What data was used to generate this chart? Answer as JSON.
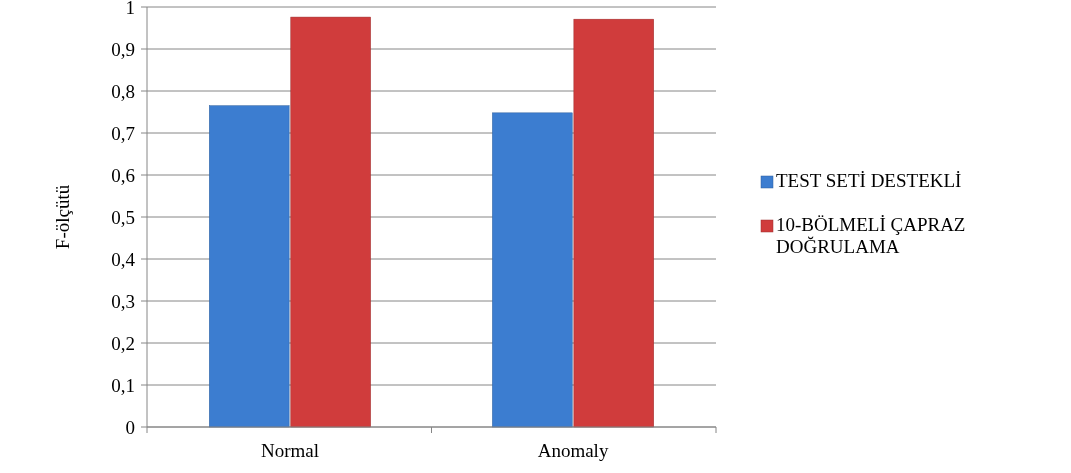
{
  "chart_data": {
    "type": "bar",
    "ylabel": "F-ölçütü",
    "categories": [
      "Normal",
      "Anomaly"
    ],
    "series": [
      {
        "name": "TEST SETİ DESTEKLİ",
        "color": "#3c7dd0",
        "values": [
          0.765,
          0.748
        ]
      },
      {
        "name": "10-BÖLMELİ ÇAPRAZ DOĞRULAMA",
        "color": "#d03c3c",
        "values": [
          0.976,
          0.971
        ]
      }
    ],
    "ylim": [
      0,
      1
    ],
    "yticks": [
      0,
      {
        "value": 0.1,
        "label": "0,1"
      },
      {
        "value": 0.2,
        "label": "0,2"
      },
      {
        "value": 0.3,
        "label": "0,3"
      },
      {
        "value": 0.4,
        "label": "0,4"
      },
      {
        "value": 0.5,
        "label": "0,5"
      },
      {
        "value": 0.6,
        "label": "0,6"
      },
      {
        "value": 0.7,
        "label": "0,7"
      },
      {
        "value": 0.8,
        "label": "0,8"
      },
      {
        "value": 0.9,
        "label": "0,9"
      },
      1
    ],
    "grid": "y",
    "legend": "right"
  }
}
